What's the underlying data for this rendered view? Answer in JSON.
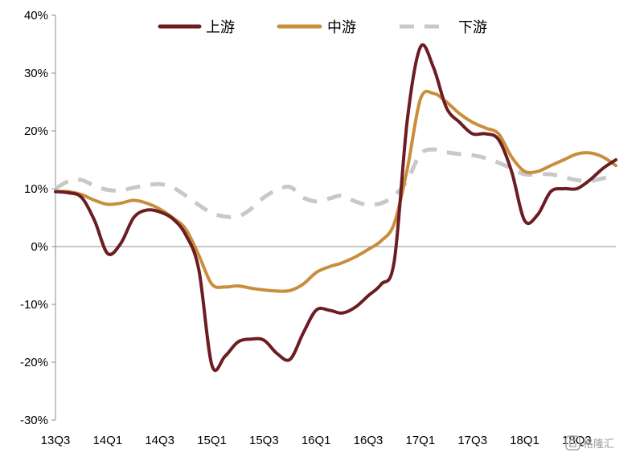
{
  "chart_data": {
    "type": "line",
    "title": "",
    "xlabel": "",
    "ylabel": "",
    "ylim": [
      -30,
      40
    ],
    "yticks": [
      -30,
      -20,
      -10,
      0,
      10,
      20,
      30,
      40
    ],
    "ytick_labels": [
      "-30%",
      "-20%",
      "-10%",
      "0%",
      "10%",
      "20%",
      "30%",
      "40%"
    ],
    "xlim": [
      0,
      21.5
    ],
    "xtick_labels": [
      "13Q3",
      "14Q1",
      "14Q3",
      "15Q1",
      "15Q3",
      "16Q1",
      "16Q3",
      "17Q1",
      "17Q3",
      "18Q1",
      "18Q3"
    ],
    "xtick_positions": [
      0,
      2,
      4,
      6,
      8,
      10,
      12,
      14,
      16,
      18,
      20
    ],
    "grid": false,
    "legend_position": "top-center",
    "series": [
      {
        "name": "上游",
        "color": "#6b1d22",
        "dash": "solid",
        "x": [
          0,
          0.5,
          1,
          1.5,
          2,
          2.5,
          3,
          3.5,
          4,
          4.5,
          5,
          5.5,
          6,
          6.5,
          7,
          7.5,
          8,
          8.5,
          9,
          9.5,
          10,
          10.5,
          11,
          11.5,
          12,
          12.5,
          13,
          13.5,
          14,
          14.5,
          15,
          15.5,
          16,
          16.5,
          17,
          17.5,
          18,
          18.5,
          19,
          19.5,
          20,
          20.5,
          21,
          21.5
        ],
        "values": [
          9.5,
          9.3,
          8.5,
          4.5,
          -1.2,
          0.5,
          5.0,
          6.3,
          6.0,
          4.8,
          2.0,
          -4.0,
          -20.5,
          -19.0,
          -16.5,
          -16.0,
          -16.2,
          -18.5,
          -19.5,
          -15.0,
          -11.0,
          -11.0,
          -11.5,
          -10.5,
          -8.5,
          -6.5,
          -2.5,
          22.0,
          34.5,
          31.0,
          24.0,
          21.5,
          19.5,
          19.5,
          18.5,
          13.0,
          4.5,
          5.5,
          9.5,
          10.0,
          10.0,
          11.5,
          13.5,
          15.0
        ]
      },
      {
        "name": "中游",
        "color": "#c98e3b",
        "dash": "solid",
        "x": [
          0,
          0.5,
          1,
          1.5,
          2,
          2.5,
          3,
          3.5,
          4,
          4.5,
          5,
          5.5,
          6,
          6.5,
          7,
          7.5,
          8,
          8.5,
          9,
          9.5,
          10,
          10.5,
          11,
          11.5,
          12,
          12.5,
          13,
          13.5,
          14,
          14.5,
          15,
          15.5,
          16,
          16.5,
          17,
          17.5,
          18,
          18.5,
          19,
          19.5,
          20,
          20.5,
          21,
          21.5
        ],
        "values": [
          9.5,
          9.5,
          9.0,
          8.0,
          7.3,
          7.5,
          8.0,
          7.5,
          6.5,
          5.0,
          3.0,
          -1.5,
          -6.5,
          -7.0,
          -6.8,
          -7.2,
          -7.5,
          -7.7,
          -7.6,
          -6.5,
          -4.5,
          -3.5,
          -2.8,
          -1.8,
          -0.5,
          1.0,
          4.0,
          13.5,
          25.5,
          26.5,
          25.0,
          23.0,
          21.5,
          20.5,
          19.5,
          15.5,
          13.0,
          13.0,
          14.0,
          15.0,
          16.0,
          16.2,
          15.5,
          14.0
        ]
      },
      {
        "name": "下游",
        "color": "#c8c8c8",
        "dash": "dashed",
        "x": [
          0,
          0.5,
          1,
          1.5,
          2,
          2.5,
          3,
          3.5,
          4,
          4.5,
          5,
          5.5,
          6,
          6.5,
          7,
          7.5,
          8,
          8.5,
          9,
          9.5,
          10,
          10.5,
          11,
          11.5,
          12,
          12.5,
          13,
          13.5,
          14,
          14.5,
          15,
          15.5,
          16,
          16.5,
          17,
          17.5,
          18,
          18.5,
          19,
          19.5,
          20,
          20.5,
          21,
          21.5
        ],
        "values": [
          10.0,
          11.3,
          11.5,
          10.5,
          9.8,
          9.7,
          10.2,
          10.6,
          10.8,
          10.2,
          8.8,
          7.2,
          5.8,
          5.2,
          5.2,
          6.5,
          8.5,
          9.8,
          10.3,
          8.5,
          7.8,
          8.3,
          8.8,
          7.8,
          7.2,
          7.5,
          8.8,
          11.5,
          16.0,
          16.8,
          16.3,
          16.0,
          15.8,
          15.3,
          14.5,
          13.5,
          12.5,
          12.5,
          12.5,
          12.0,
          11.5,
          11.3,
          11.8,
          12.0
        ]
      }
    ]
  },
  "watermark": "格隆汇"
}
